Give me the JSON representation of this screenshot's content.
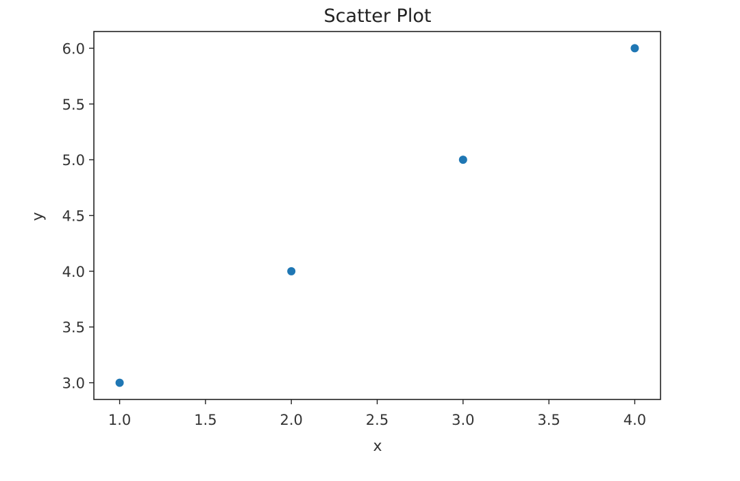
{
  "chart_data": {
    "type": "scatter",
    "title": "Scatter Plot",
    "xlabel": "x",
    "ylabel": "y",
    "xlim": [
      0.85,
      4.15
    ],
    "ylim": [
      2.85,
      6.15
    ],
    "x": [
      1.0,
      2.0,
      3.0,
      4.0
    ],
    "y": [
      3.0,
      4.0,
      5.0,
      6.0
    ],
    "xticks": [
      1.0,
      1.5,
      2.0,
      2.5,
      3.0,
      3.5,
      4.0
    ],
    "xtick_labels": [
      "1.0",
      "1.5",
      "2.0",
      "2.5",
      "3.0",
      "3.5",
      "4.0"
    ],
    "yticks": [
      3.0,
      3.5,
      4.0,
      4.5,
      5.0,
      5.5,
      6.0
    ],
    "ytick_labels": [
      "3.0",
      "3.5",
      "4.0",
      "4.5",
      "5.0",
      "5.5",
      "6.0"
    ],
    "grid": false,
    "legend": "none",
    "marker_color": "#1f77b4"
  }
}
